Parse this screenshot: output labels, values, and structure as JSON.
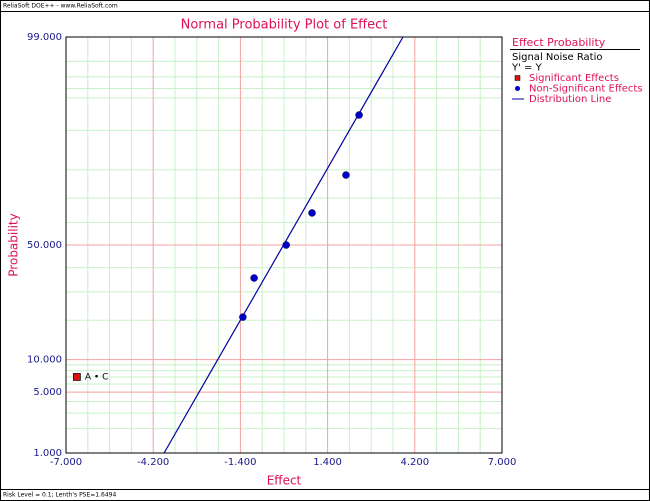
{
  "header": "ReliaSoft DOE++ - www.ReliaSoft.com",
  "footer": "Risk Level = 0.1; Lenth's PSE=1.6494",
  "chart_data": {
    "type": "probability",
    "title": "Normal Probability Plot of Effect",
    "xlabel": "Effect",
    "ylabel": "Probability",
    "yscale": "normal-probability",
    "xlim": [
      -7,
      7
    ],
    "ylim": [
      1,
      99
    ],
    "xticks": [
      {
        "value": -7,
        "label": "-7.000"
      },
      {
        "value": -4.2,
        "label": "-4.200"
      },
      {
        "value": -1.4,
        "label": "-1.400"
      },
      {
        "value": 1.4,
        "label": "1.400"
      },
      {
        "value": 4.2,
        "label": "4.200"
      },
      {
        "value": 7,
        "label": "7.000"
      }
    ],
    "yticks": [
      {
        "value": 1,
        "label": "1.000"
      },
      {
        "value": 5,
        "label": "5.000"
      },
      {
        "value": 10,
        "label": "10.000"
      },
      {
        "value": 50,
        "label": "50.000"
      },
      {
        "value": 99,
        "label": "99.000"
      }
    ],
    "xminor": [
      -6.3,
      -5.6,
      -4.9,
      -3.5,
      -2.8,
      -2.1,
      -0.7,
      0,
      0.7,
      2.1,
      2.8,
      3.5,
      4.9,
      5.6,
      6.3
    ],
    "yminor": [
      2,
      3,
      4,
      6,
      7,
      8,
      9,
      20,
      30,
      40,
      60,
      70,
      80,
      90,
      95,
      96,
      97,
      98
    ],
    "grid": true,
    "legend": {
      "title": "Effect Probability",
      "subtitle": [
        "Signal Noise Ratio",
        "Y' = Y"
      ]
    },
    "series": [
      {
        "name": "Significant Effects",
        "color": "#dd1111",
        "marker": "square",
        "x": [
          -6.65
        ],
        "values": [
          7.0
        ],
        "point_labels": [
          "A • C"
        ]
      },
      {
        "name": "Non-Significant Effects",
        "color": "#0000cc",
        "marker": "circle",
        "x": [
          -1.32,
          -0.96,
          0.07,
          0.9,
          1.99,
          2.41
        ],
        "values": [
          21.0,
          35.6,
          50.0,
          64.0,
          78.3,
          92.7
        ]
      },
      {
        "name": "Distribution Line",
        "color": "#0000a0",
        "marker": "line",
        "x": [
          -3.85,
          3.82
        ],
        "values": [
          1,
          99
        ]
      }
    ]
  }
}
